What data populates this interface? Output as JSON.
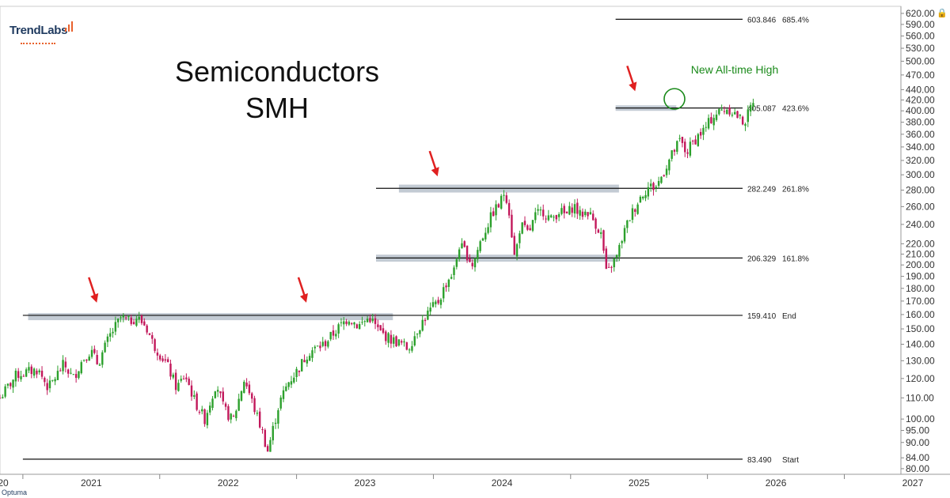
{
  "brand": {
    "logo_text": "TrendLabs",
    "footer_text": "Optuma"
  },
  "title": {
    "line1": "Semiconductors",
    "line2": "SMH"
  },
  "annotation": {
    "text": "New All-time High",
    "color": "#1a8a1a"
  },
  "colors": {
    "up": "#2ca02c",
    "down": "#c2185b",
    "zone": "#b8c2cc",
    "arrow": "#e02020"
  },
  "chart_data": {
    "type": "candlestick",
    "ticker": "SMH",
    "y_scale": "log",
    "ylim": [
      78,
      640
    ],
    "xlim": [
      "2020-11-01",
      "2027-06-01"
    ],
    "y_ticks": [
      "620.00",
      "590.00",
      "560.00",
      "530.00",
      "500.00",
      "470.00",
      "440.00",
      "420.00",
      "400.00",
      "380.00",
      "360.00",
      "340.00",
      "320.00",
      "300.00",
      "280.00",
      "260.00",
      "240.00",
      "220.00",
      "210.00",
      "200.00",
      "190.00",
      "180.00",
      "170.00",
      "160.00",
      "150.00",
      "140.00",
      "130.00",
      "120.00",
      "110.00",
      "100.00",
      "95.00",
      "90.00",
      "84.00",
      "80.00"
    ],
    "x_ticks": [
      "20",
      "2021",
      "2022",
      "2023",
      "2024",
      "2025",
      "2026",
      "2027"
    ],
    "levels": [
      {
        "value": 603.846,
        "value_label": "603.846",
        "tag": "685.4%",
        "from": "2025-05-01"
      },
      {
        "value": 405.087,
        "value_label": "405.087",
        "tag": "423.6%",
        "from": "2025-05-01"
      },
      {
        "value": 282.249,
        "value_label": "282.249",
        "tag": "261.8%",
        "from": "2023-08-01"
      },
      {
        "value": 206.329,
        "value_label": "206.329",
        "tag": "161.8%",
        "from": "2023-08-01"
      },
      {
        "value": 159.41,
        "value_label": "159.410",
        "tag": "End",
        "from": "2021-01-01"
      },
      {
        "value": 83.49,
        "value_label": "83.490",
        "tag": "Start",
        "from": "2021-01-01"
      }
    ],
    "zones": [
      {
        "start": "2021-01-15",
        "end": "2023-09-15",
        "low": 156,
        "high": 161
      },
      {
        "start": "2023-10-01",
        "end": "2025-05-10",
        "low": 277,
        "high": 287
      },
      {
        "start": "2023-08-01",
        "end": "2025-05-10",
        "low": 203,
        "high": 209.5
      },
      {
        "start": "2025-05-01",
        "end": "2025-10-10",
        "low": 400,
        "high": 410
      }
    ],
    "arrows": [
      {
        "date": "2021-07-15",
        "price": 170
      },
      {
        "date": "2023-01-25",
        "price": 170
      },
      {
        "date": "2024-01-10",
        "price": 300
      },
      {
        "date": "2025-06-20",
        "price": 440
      }
    ],
    "highlight": {
      "date": "2025-10-05",
      "price": 422
    },
    "waypoints": [
      [
        "2020-11-01",
        110
      ],
      [
        "2020-12-15",
        122
      ],
      [
        "2021-02-10",
        125
      ],
      [
        "2021-03-10",
        115
      ],
      [
        "2021-04-20",
        128
      ],
      [
        "2021-05-15",
        120
      ],
      [
        "2021-06-10",
        131
      ],
      [
        "2021-07-01",
        136
      ],
      [
        "2021-07-20",
        128
      ],
      [
        "2021-08-20",
        145
      ],
      [
        "2021-09-20",
        158
      ],
      [
        "2021-10-10",
        155
      ],
      [
        "2021-11-01",
        158
      ],
      [
        "2021-11-25",
        152
      ],
      [
        "2021-12-15",
        140
      ],
      [
        "2022-01-20",
        128
      ],
      [
        "2022-02-15",
        115
      ],
      [
        "2022-03-10",
        122
      ],
      [
        "2022-04-05",
        108
      ],
      [
        "2022-05-01",
        100
      ],
      [
        "2022-06-01",
        118
      ],
      [
        "2022-06-20",
        105
      ],
      [
        "2022-07-15",
        99
      ],
      [
        "2022-08-15",
        120
      ],
      [
        "2022-09-10",
        105
      ],
      [
        "2022-10-05",
        93
      ],
      [
        "2022-10-15",
        86
      ],
      [
        "2022-11-15",
        107
      ],
      [
        "2022-12-10",
        118
      ],
      [
        "2023-01-05",
        125
      ],
      [
        "2023-02-01",
        135
      ],
      [
        "2023-03-15",
        140
      ],
      [
        "2023-04-20",
        150
      ],
      [
        "2023-05-20",
        158
      ],
      [
        "2023-06-15",
        152
      ],
      [
        "2023-07-15",
        158
      ],
      [
        "2023-08-10",
        148
      ],
      [
        "2023-09-10",
        143
      ],
      [
        "2023-10-10",
        140
      ],
      [
        "2023-10-25",
        137
      ],
      [
        "2023-11-20",
        150
      ],
      [
        "2023-12-20",
        162
      ],
      [
        "2024-01-15",
        170
      ],
      [
        "2024-02-05",
        185
      ],
      [
        "2024-02-25",
        195
      ],
      [
        "2024-03-10",
        218
      ],
      [
        "2024-03-25",
        213
      ],
      [
        "2024-04-15",
        200
      ],
      [
        "2024-05-05",
        222
      ],
      [
        "2024-05-25",
        240
      ],
      [
        "2024-06-10",
        255
      ],
      [
        "2024-06-25",
        262
      ],
      [
        "2024-07-10",
        280
      ],
      [
        "2024-07-20",
        258
      ],
      [
        "2024-08-05",
        205
      ],
      [
        "2024-08-20",
        240
      ],
      [
        "2024-09-10",
        230
      ],
      [
        "2024-09-30",
        250
      ],
      [
        "2024-10-20",
        255
      ],
      [
        "2024-11-10",
        245
      ],
      [
        "2024-12-01",
        255
      ],
      [
        "2024-12-20",
        250
      ],
      [
        "2025-01-10",
        262
      ],
      [
        "2025-01-25",
        250
      ],
      [
        "2025-02-15",
        255
      ],
      [
        "2025-03-10",
        240
      ],
      [
        "2025-03-25",
        228
      ],
      [
        "2025-04-07",
        190
      ],
      [
        "2025-04-20",
        200
      ],
      [
        "2025-05-05",
        208
      ],
      [
        "2025-05-20",
        228
      ],
      [
        "2025-06-10",
        250
      ],
      [
        "2025-06-25",
        262
      ],
      [
        "2025-07-10",
        275
      ],
      [
        "2025-07-30",
        285
      ],
      [
        "2025-08-15",
        283
      ],
      [
        "2025-09-01",
        298
      ],
      [
        "2025-09-20",
        320
      ],
      [
        "2025-10-05",
        335
      ],
      [
        "2025-10-20",
        350
      ],
      [
        "2025-11-05",
        330
      ],
      [
        "2025-11-20",
        345
      ],
      [
        "2025-12-10",
        360
      ],
      [
        "2025-12-25",
        368
      ],
      [
        "2026-01-15",
        390
      ],
      [
        "2026-02-05",
        400
      ],
      [
        "2026-02-25",
        405
      ],
      [
        "2026-03-15",
        395
      ],
      [
        "2026-03-30",
        385
      ],
      [
        "2026-04-10",
        380
      ],
      [
        "2026-04-20",
        395
      ],
      [
        "2026-05-05",
        425
      ]
    ]
  }
}
